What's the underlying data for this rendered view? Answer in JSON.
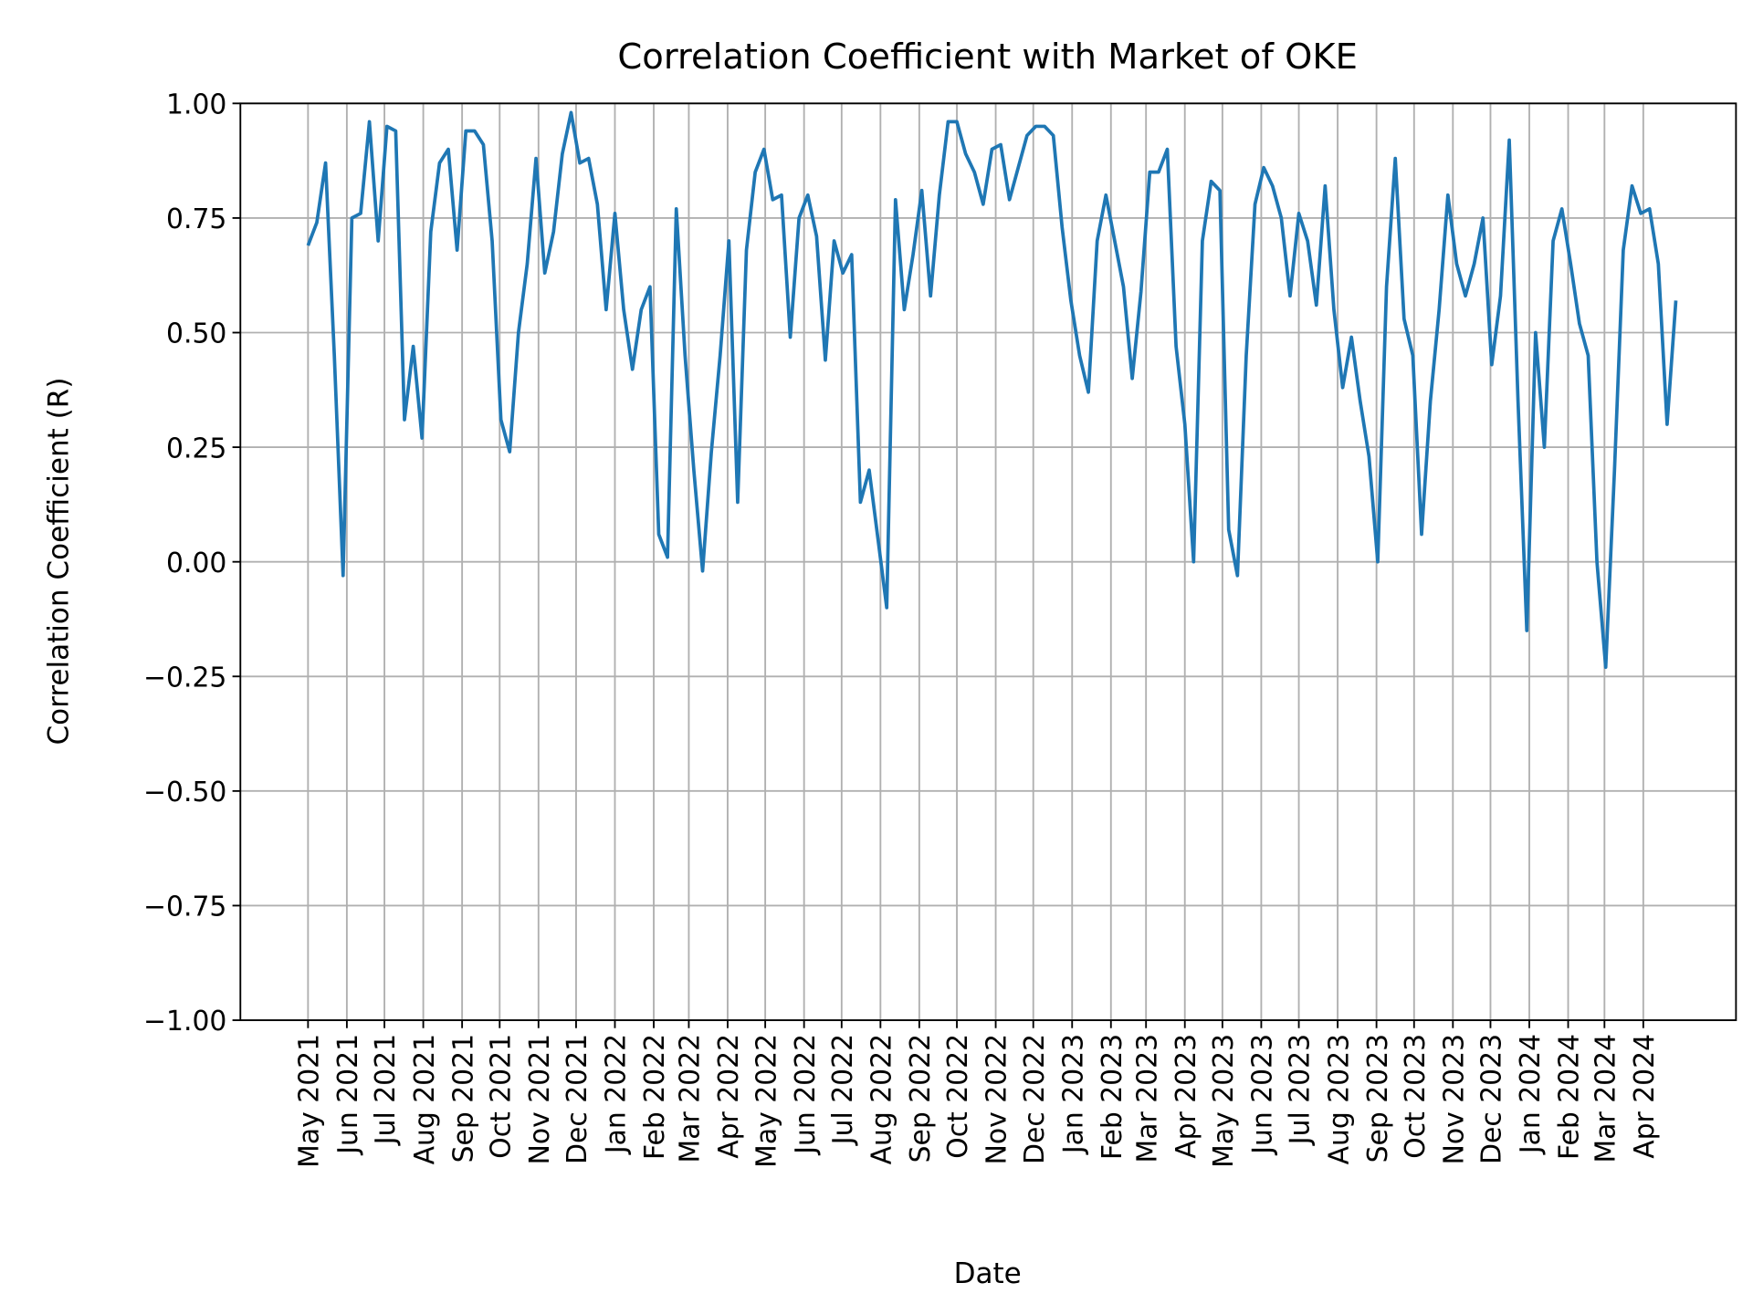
{
  "chart_data": {
    "type": "line",
    "title": "Correlation Coefficient with Market of OKE",
    "x_label": "Date",
    "y_label": "Correlation Coefficient (R)",
    "x": [
      "2021-05-01",
      "2021-05-08",
      "2021-05-15",
      "2021-05-22",
      "2021-05-29",
      "2021-06-05",
      "2021-06-12",
      "2021-06-19",
      "2021-06-26",
      "2021-07-03",
      "2021-07-10",
      "2021-07-17",
      "2021-07-24",
      "2021-07-31",
      "2021-08-07",
      "2021-08-14",
      "2021-08-21",
      "2021-08-28",
      "2021-09-04",
      "2021-09-11",
      "2021-09-18",
      "2021-09-25",
      "2021-10-02",
      "2021-10-09",
      "2021-10-16",
      "2021-10-23",
      "2021-10-30",
      "2021-11-06",
      "2021-11-13",
      "2021-11-20",
      "2021-11-27",
      "2021-12-04",
      "2021-12-11",
      "2021-12-18",
      "2021-12-25",
      "2022-01-01",
      "2022-01-08",
      "2022-01-15",
      "2022-01-22",
      "2022-01-29",
      "2022-02-05",
      "2022-02-12",
      "2022-02-19",
      "2022-02-26",
      "2022-03-05",
      "2022-03-12",
      "2022-03-19",
      "2022-03-26",
      "2022-04-02",
      "2022-04-09",
      "2022-04-16",
      "2022-04-23",
      "2022-04-30",
      "2022-05-07",
      "2022-05-14",
      "2022-05-21",
      "2022-05-28",
      "2022-06-04",
      "2022-06-11",
      "2022-06-18",
      "2022-06-25",
      "2022-07-02",
      "2022-07-09",
      "2022-07-16",
      "2022-07-23",
      "2022-07-30",
      "2022-08-06",
      "2022-08-13",
      "2022-08-20",
      "2022-08-27",
      "2022-09-03",
      "2022-09-10",
      "2022-09-17",
      "2022-09-24",
      "2022-10-01",
      "2022-10-08",
      "2022-10-15",
      "2022-10-22",
      "2022-10-29",
      "2022-11-05",
      "2022-11-12",
      "2022-11-19",
      "2022-11-26",
      "2022-12-03",
      "2022-12-10",
      "2022-12-17",
      "2022-12-24",
      "2022-12-31",
      "2023-01-07",
      "2023-01-14",
      "2023-01-21",
      "2023-01-28",
      "2023-02-04",
      "2023-02-11",
      "2023-02-18",
      "2023-02-25",
      "2023-03-04",
      "2023-03-11",
      "2023-03-18",
      "2023-03-25",
      "2023-04-01",
      "2023-04-08",
      "2023-04-15",
      "2023-04-22",
      "2023-04-29",
      "2023-05-06",
      "2023-05-13",
      "2023-05-20",
      "2023-05-27",
      "2023-06-03",
      "2023-06-10",
      "2023-06-17",
      "2023-06-24",
      "2023-07-01",
      "2023-07-08",
      "2023-07-15",
      "2023-07-22",
      "2023-07-29",
      "2023-08-05",
      "2023-08-12",
      "2023-08-19",
      "2023-08-26",
      "2023-09-02",
      "2023-09-09",
      "2023-09-16",
      "2023-09-23",
      "2023-09-30",
      "2023-10-07",
      "2023-10-14",
      "2023-10-21",
      "2023-10-28",
      "2023-11-04",
      "2023-11-11",
      "2023-11-18",
      "2023-11-25",
      "2023-12-02",
      "2023-12-09",
      "2023-12-16",
      "2023-12-23",
      "2023-12-30",
      "2024-01-06",
      "2024-01-13",
      "2024-01-20",
      "2024-01-27",
      "2024-02-03",
      "2024-02-10",
      "2024-02-17",
      "2024-02-24",
      "2024-03-02",
      "2024-03-09",
      "2024-03-16",
      "2024-03-23",
      "2024-03-30",
      "2024-04-06",
      "2024-04-13",
      "2024-04-20",
      "2024-04-27"
    ],
    "series": [
      {
        "color": "#1f77b4",
        "values": [
          0.69,
          0.74,
          0.87,
          0.45,
          -0.03,
          0.75,
          0.76,
          0.96,
          0.7,
          0.95,
          0.94,
          0.31,
          0.47,
          0.27,
          0.72,
          0.87,
          0.9,
          0.68,
          0.94,
          0.94,
          0.91,
          0.7,
          0.31,
          0.24,
          0.5,
          0.65,
          0.88,
          0.63,
          0.72,
          0.89,
          0.98,
          0.87,
          0.88,
          0.78,
          0.55,
          0.76,
          0.55,
          0.42,
          0.55,
          0.6,
          0.06,
          0.01,
          0.77,
          0.45,
          0.2,
          -0.02,
          0.24,
          0.45,
          0.7,
          0.13,
          0.68,
          0.85,
          0.9,
          0.79,
          0.8,
          0.49,
          0.75,
          0.8,
          0.71,
          0.44,
          0.7,
          0.63,
          0.67,
          0.13,
          0.2,
          0.05,
          -0.1,
          0.79,
          0.55,
          0.67,
          0.81,
          0.58,
          0.8,
          0.96,
          0.96,
          0.89,
          0.85,
          0.78,
          0.9,
          0.91,
          0.79,
          0.86,
          0.93,
          0.95,
          0.95,
          0.93,
          0.73,
          0.57,
          0.45,
          0.37,
          0.7,
          0.8,
          0.7,
          0.6,
          0.4,
          0.59,
          0.85,
          0.85,
          0.9,
          0.47,
          0.3,
          0.0,
          0.7,
          0.83,
          0.81,
          0.07,
          -0.03,
          0.45,
          0.78,
          0.86,
          0.82,
          0.75,
          0.58,
          0.76,
          0.7,
          0.56,
          0.82,
          0.55,
          0.38,
          0.49,
          0.35,
          0.23,
          0.0,
          0.6,
          0.88,
          0.53,
          0.45,
          0.06,
          0.35,
          0.55,
          0.8,
          0.65,
          0.58,
          0.65,
          0.75,
          0.43,
          0.58,
          0.92,
          0.35,
          -0.15,
          0.5,
          0.25,
          0.7,
          0.77,
          0.65,
          0.52,
          0.45,
          0.0,
          -0.23,
          0.2,
          0.68,
          0.82,
          0.76,
          0.77,
          0.65,
          0.3,
          0.57
        ]
      }
    ],
    "xlim": [
      "2021-03-08",
      "2024-06-14"
    ],
    "xticks": [
      {
        "value": "2021-05-01",
        "label": "May 2021"
      },
      {
        "value": "2021-06-01",
        "label": "Jun 2021"
      },
      {
        "value": "2021-07-01",
        "label": "Jul 2021"
      },
      {
        "value": "2021-08-01",
        "label": "Aug 2021"
      },
      {
        "value": "2021-09-01",
        "label": "Sep 2021"
      },
      {
        "value": "2021-10-01",
        "label": "Oct 2021"
      },
      {
        "value": "2021-11-01",
        "label": "Nov 2021"
      },
      {
        "value": "2021-12-01",
        "label": "Dec 2021"
      },
      {
        "value": "2022-01-01",
        "label": "Jan 2022"
      },
      {
        "value": "2022-02-01",
        "label": "Feb 2022"
      },
      {
        "value": "2022-03-01",
        "label": "Mar 2022"
      },
      {
        "value": "2022-04-01",
        "label": "Apr 2022"
      },
      {
        "value": "2022-05-01",
        "label": "May 2022"
      },
      {
        "value": "2022-06-01",
        "label": "Jun 2022"
      },
      {
        "value": "2022-07-01",
        "label": "Jul 2022"
      },
      {
        "value": "2022-08-01",
        "label": "Aug 2022"
      },
      {
        "value": "2022-09-01",
        "label": "Sep 2022"
      },
      {
        "value": "2022-10-01",
        "label": "Oct 2022"
      },
      {
        "value": "2022-11-01",
        "label": "Nov 2022"
      },
      {
        "value": "2022-12-01",
        "label": "Dec 2022"
      },
      {
        "value": "2023-01-01",
        "label": "Jan 2023"
      },
      {
        "value": "2023-02-01",
        "label": "Feb 2023"
      },
      {
        "value": "2023-03-01",
        "label": "Mar 2023"
      },
      {
        "value": "2023-04-01",
        "label": "Apr 2023"
      },
      {
        "value": "2023-05-01",
        "label": "May 2023"
      },
      {
        "value": "2023-06-01",
        "label": "Jun 2023"
      },
      {
        "value": "2023-07-01",
        "label": "Jul 2023"
      },
      {
        "value": "2023-08-01",
        "label": "Aug 2023"
      },
      {
        "value": "2023-09-01",
        "label": "Sep 2023"
      },
      {
        "value": "2023-10-01",
        "label": "Oct 2023"
      },
      {
        "value": "2023-11-01",
        "label": "Nov 2023"
      },
      {
        "value": "2023-12-01",
        "label": "Dec 2023"
      },
      {
        "value": "2024-01-01",
        "label": "Jan 2024"
      },
      {
        "value": "2024-02-01",
        "label": "Feb 2024"
      },
      {
        "value": "2024-03-01",
        "label": "Mar 2024"
      },
      {
        "value": "2024-04-01",
        "label": "Apr 2024"
      }
    ],
    "ylim": [
      -1,
      1
    ],
    "yticks": [
      {
        "value": -1,
        "label": "−1.00"
      },
      {
        "value": -0.75,
        "label": "−0.75"
      },
      {
        "value": -0.5,
        "label": "−0.50"
      },
      {
        "value": -0.25,
        "label": "−0.25"
      },
      {
        "value": 0,
        "label": "0.00"
      },
      {
        "value": 0.25,
        "label": "0.25"
      },
      {
        "value": 0.5,
        "label": "0.50"
      },
      {
        "value": 0.75,
        "label": "0.75"
      },
      {
        "value": 1,
        "label": "1.00"
      }
    ],
    "grid": true
  }
}
